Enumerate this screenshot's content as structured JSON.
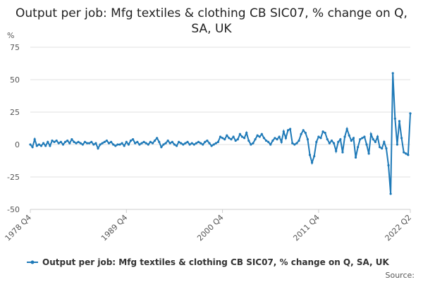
{
  "chart_data": {
    "type": "line",
    "title": "Output per job: Mfg textiles & clothing CB SIC07, % change on Q, SA, UK",
    "y_unit": "%",
    "source": "Source:",
    "categories": [
      "1978 Q4",
      null,
      null,
      null,
      null,
      null,
      null,
      null,
      null,
      null,
      null,
      null,
      null,
      null,
      null,
      null,
      null,
      null,
      null,
      null,
      null,
      null,
      null,
      null,
      null,
      null,
      null,
      null,
      null,
      null,
      null,
      null,
      null,
      null,
      null,
      null,
      null,
      null,
      null,
      null,
      null,
      null,
      null,
      null,
      "1989 Q4",
      null,
      null,
      null,
      null,
      null,
      null,
      null,
      null,
      null,
      null,
      null,
      null,
      null,
      null,
      null,
      null,
      null,
      null,
      null,
      null,
      null,
      null,
      null,
      null,
      null,
      null,
      null,
      null,
      null,
      null,
      null,
      null,
      null,
      null,
      null,
      null,
      null,
      null,
      null,
      null,
      null,
      null,
      null,
      "2000 Q4",
      null,
      null,
      null,
      null,
      null,
      null,
      null,
      null,
      null,
      null,
      null,
      null,
      null,
      null,
      null,
      null,
      null,
      null,
      null,
      null,
      null,
      null,
      null,
      null,
      null,
      null,
      null,
      null,
      null,
      null,
      null,
      null,
      null,
      null,
      null,
      null,
      null,
      null,
      null,
      null,
      null,
      null,
      null,
      "2011 Q4",
      null,
      null,
      null,
      null,
      null,
      null,
      null,
      null,
      null,
      null,
      null,
      null,
      null,
      null,
      null,
      null,
      null,
      null,
      null,
      null,
      null,
      null,
      null,
      null,
      null,
      null,
      null,
      null,
      null,
      null,
      null,
      null,
      null,
      null,
      null,
      null,
      null,
      null,
      null,
      null,
      null,
      "2022 Q2"
    ],
    "series": [
      {
        "name": "Output per job: Mfg textiles & clothing CB SIC07, % change on Q, SA, UK",
        "color": "#1f7ab8",
        "values": [
          0,
          -2,
          4,
          -1,
          0,
          -1,
          1,
          -1,
          2,
          -1,
          3,
          2,
          3,
          1,
          2,
          0,
          2,
          3,
          1,
          4,
          2,
          1,
          2,
          1,
          0,
          2,
          1,
          1,
          2,
          0,
          1,
          -3,
          0,
          1,
          2,
          3,
          1,
          2,
          0,
          -1,
          0,
          0,
          1,
          -1,
          2,
          0,
          3,
          4,
          1,
          2,
          0,
          1,
          2,
          1,
          0,
          2,
          1,
          3,
          5,
          2,
          -2,
          0,
          1,
          3,
          1,
          2,
          0,
          -1,
          2,
          1,
          0,
          1,
          2,
          0,
          1,
          0,
          1,
          2,
          1,
          0,
          2,
          3,
          1,
          -1,
          0,
          1,
          2,
          6,
          5,
          4,
          7,
          5,
          4,
          6,
          3,
          4,
          8,
          6,
          5,
          9,
          3,
          0,
          1,
          4,
          7,
          6,
          8,
          5,
          3,
          2,
          0,
          3,
          5,
          4,
          6,
          2,
          10,
          5,
          11,
          12,
          1,
          0,
          1,
          3,
          8,
          11,
          9,
          4,
          -8,
          -14,
          -9,
          2,
          6,
          5,
          10,
          9,
          4,
          1,
          3,
          1,
          -5,
          2,
          4,
          -6,
          6,
          12,
          7,
          3,
          5,
          -10,
          -2,
          4,
          5,
          6,
          0,
          -7,
          8,
          4,
          2,
          6,
          -2,
          -3,
          2,
          -3,
          -16,
          -38,
          55,
          20,
          0,
          18,
          5,
          -6,
          -7,
          -8,
          24
        ]
      }
    ],
    "ylim": [
      -50,
      75
    ],
    "yticks": [
      -50,
      -25,
      0,
      25,
      50,
      75
    ],
    "grid": true
  }
}
